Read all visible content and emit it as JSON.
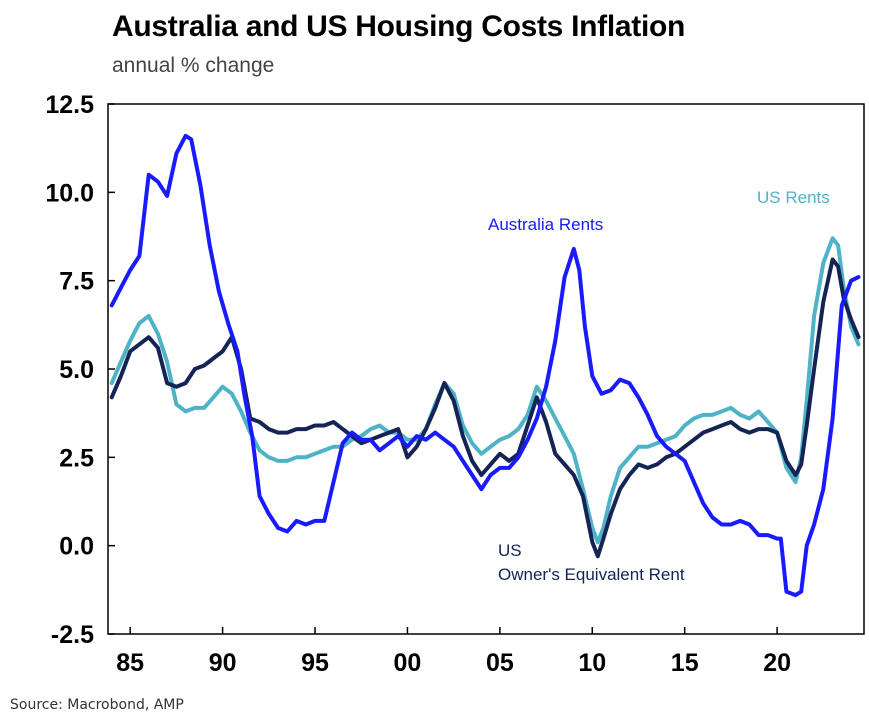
{
  "page": {
    "title": "Australia and US Housing Costs Inflation",
    "subtitle": "annual % change",
    "source": "Source: Macrobond, AMP"
  },
  "chart_data": {
    "type": "line",
    "title": "Australia and US Housing Costs Inflation",
    "subtitle": "annual % change",
    "xlabel": "",
    "ylabel": "annual % change",
    "xlim": [
      1983.8,
      2024.7
    ],
    "ylim": [
      -2.5,
      12.5
    ],
    "y_ticks": [
      12.5,
      10.0,
      7.5,
      5.0,
      2.5,
      0.0,
      -2.5
    ],
    "y_tick_labels": [
      "12.5",
      "10.0",
      "7.5",
      "5.0",
      "2.5",
      "0.0",
      "-2.5"
    ],
    "x_ticks": [
      1985,
      1990,
      1995,
      2000,
      2005,
      2010,
      2015,
      2020
    ],
    "x_tick_labels": [
      "85",
      "90",
      "95",
      "00",
      "05",
      "10",
      "15",
      "20"
    ],
    "grid": false,
    "legend": "inline annotations",
    "series": [
      {
        "name": "Australia Rents",
        "color": "#1a1aff",
        "x": [
          1984.0,
          1984.5,
          1985.0,
          1985.5,
          1986.0,
          1986.5,
          1987.0,
          1987.5,
          1988.0,
          1988.3,
          1988.8,
          1989.3,
          1989.8,
          1990.3,
          1990.8,
          1991.2,
          1991.6,
          1992.0,
          1992.5,
          1993.0,
          1993.5,
          1994.0,
          1994.5,
          1995.0,
          1995.5,
          1996.0,
          1996.5,
          1997.0,
          1997.5,
          1998.0,
          1998.5,
          1999.0,
          1999.5,
          2000.0,
          2000.5,
          2001.0,
          2001.5,
          2002.0,
          2002.5,
          2003.0,
          2003.5,
          2004.0,
          2004.5,
          2005.0,
          2005.5,
          2006.0,
          2006.5,
          2007.0,
          2007.5,
          2008.0,
          2008.5,
          2009.0,
          2009.3,
          2009.6,
          2010.0,
          2010.5,
          2011.0,
          2011.5,
          2012.0,
          2012.5,
          2013.0,
          2013.5,
          2014.0,
          2014.5,
          2015.0,
          2015.5,
          2016.0,
          2016.5,
          2017.0,
          2017.5,
          2018.0,
          2018.5,
          2019.0,
          2019.5,
          2020.0,
          2020.2,
          2020.5,
          2021.0,
          2021.3,
          2021.6,
          2022.0,
          2022.5,
          2023.0,
          2023.5,
          2024.0,
          2024.4
        ],
        "values": [
          6.8,
          7.3,
          7.8,
          8.2,
          10.5,
          10.3,
          9.9,
          11.1,
          11.6,
          11.5,
          10.2,
          8.5,
          7.2,
          6.3,
          5.5,
          4.2,
          3.1,
          1.4,
          0.9,
          0.5,
          0.4,
          0.7,
          0.6,
          0.7,
          0.7,
          1.8,
          2.9,
          3.2,
          3.0,
          3.0,
          2.7,
          2.9,
          3.1,
          2.8,
          3.1,
          3.0,
          3.2,
          3.0,
          2.8,
          2.4,
          2.0,
          1.6,
          2.0,
          2.2,
          2.2,
          2.5,
          3.0,
          3.6,
          4.5,
          5.8,
          7.6,
          8.4,
          7.8,
          6.2,
          4.8,
          4.3,
          4.4,
          4.7,
          4.6,
          4.2,
          3.7,
          3.1,
          2.8,
          2.6,
          2.4,
          1.8,
          1.2,
          0.8,
          0.6,
          0.6,
          0.7,
          0.6,
          0.3,
          0.3,
          0.2,
          0.2,
          -1.3,
          -1.4,
          -1.3,
          0.0,
          0.6,
          1.6,
          3.6,
          6.8,
          7.5,
          7.6
        ]
      },
      {
        "name": "US Rents",
        "color": "#4fb3c8",
        "x": [
          1984.0,
          1984.5,
          1985.0,
          1985.5,
          1986.0,
          1986.5,
          1987.0,
          1987.5,
          1988.0,
          1988.5,
          1989.0,
          1989.5,
          1990.0,
          1990.5,
          1991.0,
          1991.5,
          1992.0,
          1992.5,
          1993.0,
          1993.5,
          1994.0,
          1994.5,
          1995.0,
          1995.5,
          1996.0,
          1996.5,
          1997.0,
          1997.5,
          1998.0,
          1998.5,
          1999.0,
          1999.5,
          2000.0,
          2000.5,
          2001.0,
          2001.5,
          2002.0,
          2002.5,
          2003.0,
          2003.5,
          2004.0,
          2004.5,
          2005.0,
          2005.5,
          2006.0,
          2006.5,
          2007.0,
          2007.5,
          2008.0,
          2008.5,
          2009.0,
          2009.5,
          2010.0,
          2010.3,
          2010.6,
          2011.0,
          2011.5,
          2012.0,
          2012.5,
          2013.0,
          2013.5,
          2014.0,
          2014.5,
          2015.0,
          2015.5,
          2016.0,
          2016.5,
          2017.0,
          2017.5,
          2018.0,
          2018.5,
          2019.0,
          2019.5,
          2020.0,
          2020.5,
          2021.0,
          2021.3,
          2021.6,
          2022.0,
          2022.5,
          2023.0,
          2023.3,
          2023.6,
          2024.0,
          2024.4
        ],
        "values": [
          4.6,
          5.2,
          5.8,
          6.3,
          6.5,
          6.0,
          5.2,
          4.0,
          3.8,
          3.9,
          3.9,
          4.2,
          4.5,
          4.3,
          3.8,
          3.2,
          2.7,
          2.5,
          2.4,
          2.4,
          2.5,
          2.5,
          2.6,
          2.7,
          2.8,
          2.8,
          3.0,
          3.1,
          3.3,
          3.4,
          3.2,
          3.2,
          3.0,
          3.0,
          3.3,
          4.0,
          4.6,
          4.3,
          3.4,
          2.9,
          2.6,
          2.8,
          3.0,
          3.1,
          3.3,
          3.7,
          4.5,
          4.1,
          3.6,
          3.1,
          2.6,
          1.6,
          0.5,
          0.1,
          0.5,
          1.4,
          2.2,
          2.5,
          2.8,
          2.8,
          2.9,
          3.0,
          3.1,
          3.4,
          3.6,
          3.7,
          3.7,
          3.8,
          3.9,
          3.7,
          3.6,
          3.8,
          3.5,
          3.2,
          2.2,
          1.8,
          2.5,
          4.1,
          6.5,
          8.0,
          8.7,
          8.5,
          7.3,
          6.2,
          5.7
        ]
      },
      {
        "name": "US Owner's Equivalent Rent",
        "color": "#142455",
        "x": [
          1984.0,
          1984.5,
          1985.0,
          1985.5,
          1986.0,
          1986.5,
          1987.0,
          1987.5,
          1988.0,
          1988.5,
          1989.0,
          1989.5,
          1990.0,
          1990.5,
          1991.0,
          1991.5,
          1992.0,
          1992.5,
          1993.0,
          1993.5,
          1994.0,
          1994.5,
          1995.0,
          1995.5,
          1996.0,
          1996.5,
          1997.0,
          1997.5,
          1998.0,
          1998.5,
          1999.0,
          1999.5,
          2000.0,
          2000.5,
          2001.0,
          2001.5,
          2002.0,
          2002.5,
          2003.0,
          2003.5,
          2004.0,
          2004.5,
          2005.0,
          2005.5,
          2006.0,
          2006.5,
          2007.0,
          2007.5,
          2008.0,
          2008.5,
          2009.0,
          2009.5,
          2010.0,
          2010.3,
          2010.6,
          2011.0,
          2011.5,
          2012.0,
          2012.5,
          2013.0,
          2013.5,
          2014.0,
          2014.5,
          2015.0,
          2015.5,
          2016.0,
          2016.5,
          2017.0,
          2017.5,
          2018.0,
          2018.5,
          2019.0,
          2019.5,
          2020.0,
          2020.5,
          2021.0,
          2021.3,
          2021.6,
          2022.0,
          2022.5,
          2023.0,
          2023.3,
          2023.6,
          2024.0,
          2024.4
        ],
        "values": [
          4.2,
          4.8,
          5.5,
          5.7,
          5.9,
          5.6,
          4.6,
          4.5,
          4.6,
          5.0,
          5.1,
          5.3,
          5.5,
          5.9,
          5.0,
          3.6,
          3.5,
          3.3,
          3.2,
          3.2,
          3.3,
          3.3,
          3.4,
          3.4,
          3.5,
          3.3,
          3.1,
          2.9,
          3.0,
          3.1,
          3.2,
          3.3,
          2.5,
          2.8,
          3.3,
          3.9,
          4.6,
          4.1,
          3.1,
          2.4,
          2.0,
          2.3,
          2.6,
          2.4,
          2.6,
          3.4,
          4.2,
          3.5,
          2.6,
          2.3,
          2.0,
          1.4,
          0.1,
          -0.3,
          0.2,
          0.9,
          1.6,
          2.0,
          2.3,
          2.2,
          2.3,
          2.5,
          2.6,
          2.8,
          3.0,
          3.2,
          3.3,
          3.4,
          3.5,
          3.3,
          3.2,
          3.3,
          3.3,
          3.2,
          2.4,
          2.0,
          2.3,
          3.4,
          5.0,
          6.9,
          8.1,
          7.9,
          7.0,
          6.4,
          5.9
        ]
      }
    ],
    "annotations": [
      {
        "text": "Australia Rents",
        "series": "Australia Rents"
      },
      {
        "text": "US Rents",
        "series": "US Rents"
      },
      {
        "text": "US",
        "series": "US Owner's Equivalent Rent"
      },
      {
        "text": "Owner's Equivalent Rent",
        "series": "US Owner's Equivalent Rent"
      }
    ]
  }
}
